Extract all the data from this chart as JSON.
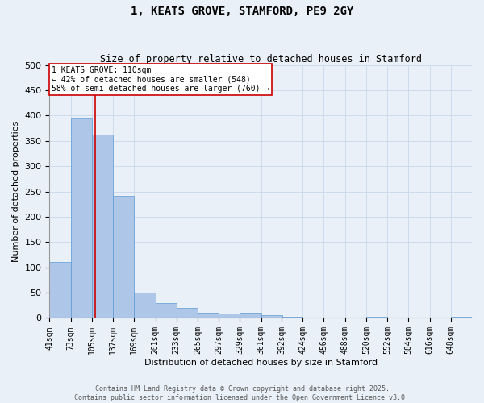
{
  "title": "1, KEATS GROVE, STAMFORD, PE9 2GY",
  "subtitle": "Size of property relative to detached houses in Stamford",
  "xlabel": "Distribution of detached houses by size in Stamford",
  "ylabel": "Number of detached properties",
  "footer_line1": "Contains HM Land Registry data © Crown copyright and database right 2025.",
  "footer_line2": "Contains public sector information licensed under the Open Government Licence v3.0.",
  "property_label": "1 KEATS GROVE: 110sqm",
  "annotation_line1": "← 42% of detached houses are smaller (548)",
  "annotation_line2": "58% of semi-detached houses are larger (760) →",
  "property_size_sqm": 110,
  "bin_edges": [
    41,
    73,
    105,
    137,
    169,
    201,
    233,
    265,
    297,
    329,
    361,
    392,
    424,
    456,
    488,
    520,
    552,
    584,
    616,
    648,
    680
  ],
  "bar_values": [
    110,
    395,
    362,
    242,
    50,
    30,
    20,
    10,
    8,
    10,
    5,
    2,
    0,
    0,
    0,
    2,
    0,
    0,
    0,
    2
  ],
  "bar_color": "#aec6e8",
  "bar_edge_color": "#5b9bd5",
  "redline_color": "#cc0000",
  "annotation_box_color": "#cc0000",
  "bg_color": "#eaf0f8",
  "plot_bg_color": "#eaf0f8",
  "grid_color": "#c8d8ec",
  "ylim": [
    0,
    500
  ],
  "yticks": [
    0,
    50,
    100,
    150,
    200,
    250,
    300,
    350,
    400,
    450,
    500
  ]
}
